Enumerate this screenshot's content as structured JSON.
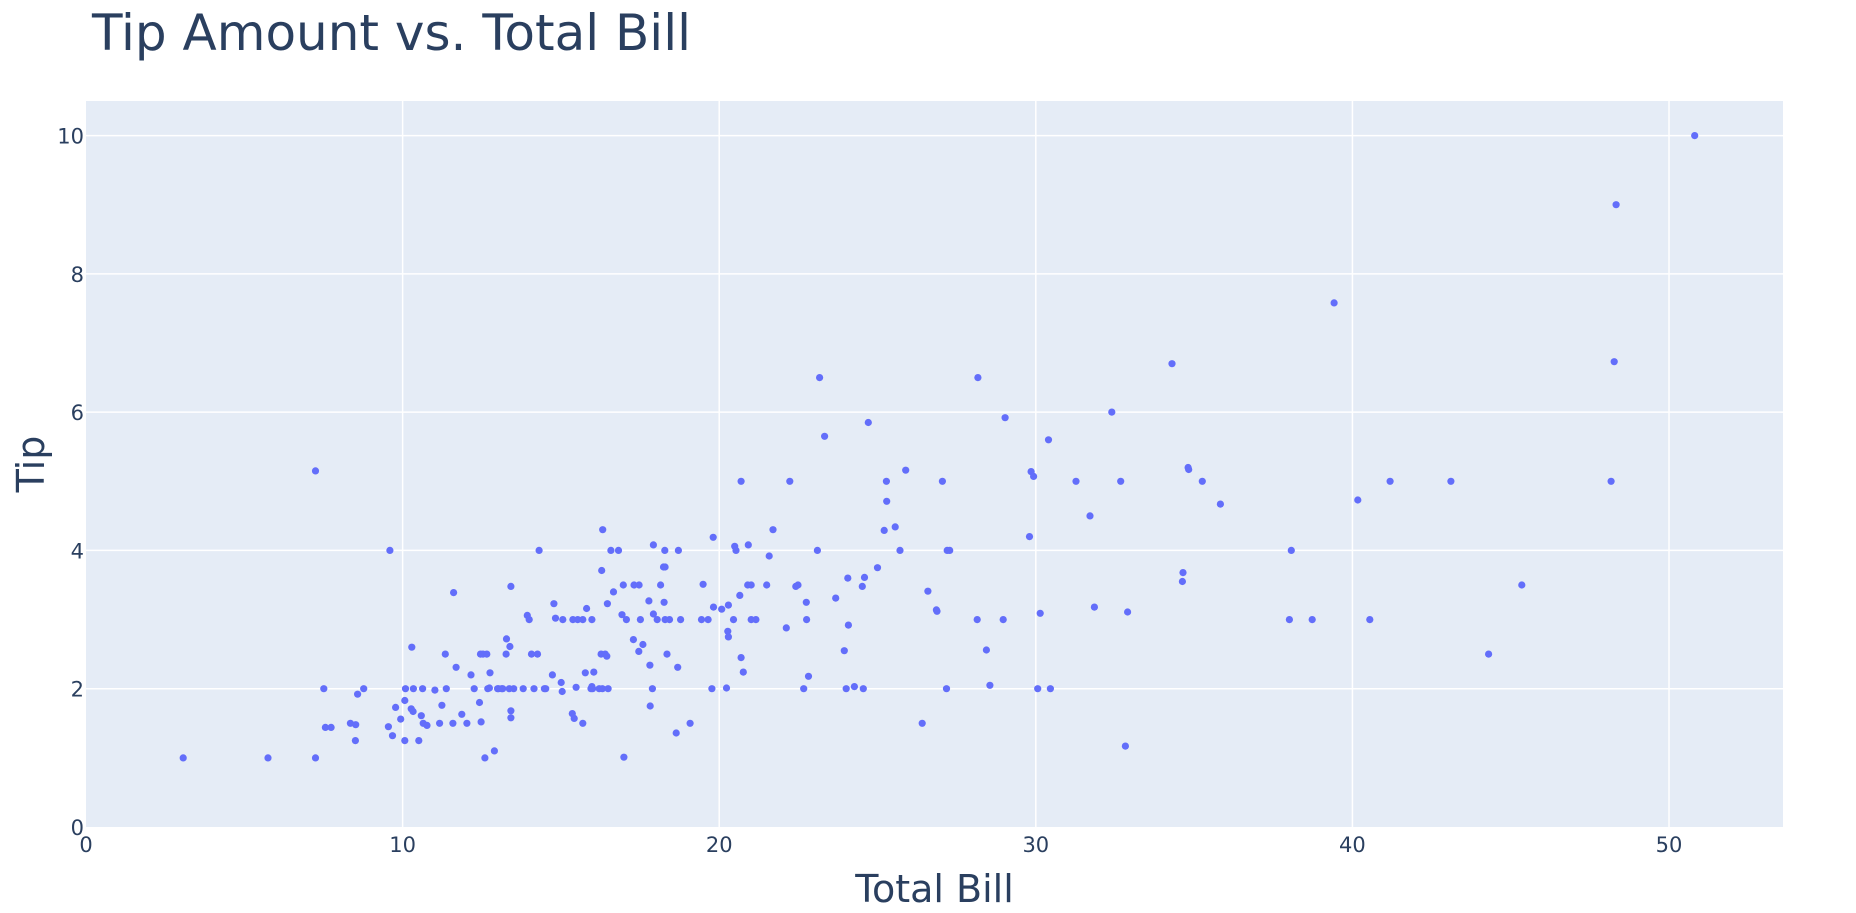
{
  "chart_data": {
    "type": "scatter",
    "title": "Tip Amount vs. Total Bill",
    "xlabel": "Total Bill",
    "ylabel": "Tip",
    "xlim": [
      0,
      53.6
    ],
    "ylim": [
      0,
      10.5
    ],
    "xticks": [
      0,
      10,
      20,
      30,
      40,
      50
    ],
    "yticks": [
      0,
      2,
      4,
      6,
      8,
      10
    ],
    "grid": true,
    "marker_color": "#636efa",
    "plot_bg": "#e5ecf6",
    "series": [
      {
        "points": [
          [
            3.07,
            1.0
          ],
          [
            5.75,
            1.0
          ],
          [
            7.25,
            1.0
          ],
          [
            7.25,
            5.15
          ],
          [
            7.51,
            2.0
          ],
          [
            7.56,
            1.44
          ],
          [
            7.74,
            1.44
          ],
          [
            8.35,
            1.5
          ],
          [
            8.51,
            1.25
          ],
          [
            8.52,
            1.48
          ],
          [
            8.58,
            1.92
          ],
          [
            8.77,
            2.0
          ],
          [
            9.55,
            1.45
          ],
          [
            9.6,
            4.0
          ],
          [
            9.68,
            1.32
          ],
          [
            9.78,
            1.73
          ],
          [
            9.94,
            1.56
          ],
          [
            10.07,
            1.25
          ],
          [
            10.07,
            1.83
          ],
          [
            10.09,
            2.0
          ],
          [
            10.27,
            1.71
          ],
          [
            10.29,
            2.6
          ],
          [
            10.33,
            1.67
          ],
          [
            10.34,
            2.0
          ],
          [
            10.51,
            1.25
          ],
          [
            10.59,
            1.61
          ],
          [
            10.63,
            2.0
          ],
          [
            10.65,
            1.5
          ],
          [
            10.77,
            1.47
          ],
          [
            11.02,
            1.98
          ],
          [
            11.17,
            1.5
          ],
          [
            11.24,
            1.76
          ],
          [
            11.35,
            2.5
          ],
          [
            11.38,
            2.0
          ],
          [
            11.59,
            1.5
          ],
          [
            11.61,
            3.39
          ],
          [
            11.69,
            2.31
          ],
          [
            11.87,
            1.63
          ],
          [
            12.03,
            1.5
          ],
          [
            12.16,
            2.2
          ],
          [
            12.26,
            2.0
          ],
          [
            12.43,
            1.8
          ],
          [
            12.46,
            2.5
          ],
          [
            12.48,
            1.52
          ],
          [
            12.54,
            2.5
          ],
          [
            12.6,
            1.0
          ],
          [
            12.66,
            2.5
          ],
          [
            12.69,
            2.0
          ],
          [
            12.74,
            2.01
          ],
          [
            12.76,
            2.23
          ],
          [
            12.9,
            1.1
          ],
          [
            13.0,
            2.0
          ],
          [
            13.03,
            2.0
          ],
          [
            13.13,
            2.0
          ],
          [
            13.16,
            2.0
          ],
          [
            13.27,
            2.5
          ],
          [
            13.28,
            2.72
          ],
          [
            13.37,
            2.0
          ],
          [
            13.39,
            2.61
          ],
          [
            13.42,
            3.48
          ],
          [
            13.42,
            1.68
          ],
          [
            13.42,
            1.58
          ],
          [
            13.51,
            2.0
          ],
          [
            13.81,
            2.0
          ],
          [
            13.94,
            3.06
          ],
          [
            14.0,
            3.0
          ],
          [
            14.07,
            2.5
          ],
          [
            14.15,
            2.0
          ],
          [
            14.26,
            2.5
          ],
          [
            14.31,
            4.0
          ],
          [
            14.48,
            2.0
          ],
          [
            14.52,
            2.0
          ],
          [
            14.73,
            2.2
          ],
          [
            14.78,
            3.23
          ],
          [
            14.83,
            3.02
          ],
          [
            15.01,
            2.09
          ],
          [
            15.04,
            1.96
          ],
          [
            15.06,
            3.0
          ],
          [
            15.36,
            1.64
          ],
          [
            15.38,
            3.0
          ],
          [
            15.42,
            1.57
          ],
          [
            15.48,
            2.02
          ],
          [
            15.53,
            3.0
          ],
          [
            15.69,
            3.0
          ],
          [
            15.69,
            1.5
          ],
          [
            15.77,
            2.23
          ],
          [
            15.81,
            3.16
          ],
          [
            15.95,
            2.0
          ],
          [
            15.98,
            2.03
          ],
          [
            15.98,
            3.0
          ],
          [
            16.0,
            2.0
          ],
          [
            16.04,
            2.24
          ],
          [
            16.21,
            2.0
          ],
          [
            16.27,
            2.5
          ],
          [
            16.29,
            3.71
          ],
          [
            16.31,
            2.0
          ],
          [
            16.32,
            4.3
          ],
          [
            16.4,
            2.5
          ],
          [
            16.45,
            2.47
          ],
          [
            16.47,
            3.23
          ],
          [
            16.49,
            2.0
          ],
          [
            16.58,
            4.0
          ],
          [
            16.66,
            3.4
          ],
          [
            16.82,
            4.0
          ],
          [
            16.93,
            3.07
          ],
          [
            16.97,
            3.5
          ],
          [
            16.99,
            1.01
          ],
          [
            17.07,
            3.0
          ],
          [
            17.29,
            2.71
          ],
          [
            17.31,
            3.5
          ],
          [
            17.46,
            2.54
          ],
          [
            17.47,
            3.5
          ],
          [
            17.51,
            3.0
          ],
          [
            17.59,
            2.64
          ],
          [
            17.78,
            3.27
          ],
          [
            17.81,
            2.34
          ],
          [
            17.82,
            1.75
          ],
          [
            17.89,
            2.0
          ],
          [
            17.92,
            4.08
          ],
          [
            17.92,
            3.08
          ],
          [
            18.04,
            3.0
          ],
          [
            18.15,
            3.5
          ],
          [
            18.24,
            3.76
          ],
          [
            18.26,
            3.25
          ],
          [
            18.28,
            4.0
          ],
          [
            18.29,
            3.0
          ],
          [
            18.29,
            3.76
          ],
          [
            18.35,
            2.5
          ],
          [
            18.43,
            3.0
          ],
          [
            18.64,
            1.36
          ],
          [
            18.69,
            2.31
          ],
          [
            18.71,
            4.0
          ],
          [
            18.78,
            3.0
          ],
          [
            19.08,
            1.5
          ],
          [
            19.44,
            3.0
          ],
          [
            19.49,
            3.51
          ],
          [
            19.65,
            3.0
          ],
          [
            19.77,
            2.0
          ],
          [
            19.81,
            4.19
          ],
          [
            19.82,
            3.18
          ],
          [
            20.08,
            3.15
          ],
          [
            20.23,
            2.01
          ],
          [
            20.27,
            2.83
          ],
          [
            20.29,
            2.75
          ],
          [
            20.29,
            3.21
          ],
          [
            20.45,
            3.0
          ],
          [
            20.49,
            4.06
          ],
          [
            20.53,
            4.0
          ],
          [
            20.65,
            3.35
          ],
          [
            20.69,
            5.0
          ],
          [
            20.69,
            2.45
          ],
          [
            20.76,
            2.24
          ],
          [
            20.9,
            3.5
          ],
          [
            20.92,
            4.08
          ],
          [
            21.01,
            3.5
          ],
          [
            21.01,
            3.0
          ],
          [
            21.16,
            3.0
          ],
          [
            21.5,
            3.5
          ],
          [
            21.58,
            3.92
          ],
          [
            21.7,
            4.3
          ],
          [
            22.12,
            2.88
          ],
          [
            22.23,
            5.0
          ],
          [
            22.42,
            3.48
          ],
          [
            22.49,
            3.5
          ],
          [
            22.67,
            2.0
          ],
          [
            22.75,
            3.25
          ],
          [
            22.76,
            3.0
          ],
          [
            22.82,
            2.18
          ],
          [
            23.1,
            4.0
          ],
          [
            23.17,
            6.5
          ],
          [
            23.33,
            5.65
          ],
          [
            23.68,
            3.31
          ],
          [
            23.95,
            2.55
          ],
          [
            24.01,
            2.0
          ],
          [
            24.06,
            3.6
          ],
          [
            24.08,
            2.92
          ],
          [
            24.27,
            2.03
          ],
          [
            24.52,
            3.48
          ],
          [
            24.55,
            2.0
          ],
          [
            24.59,
            3.61
          ],
          [
            24.71,
            5.85
          ],
          [
            25.0,
            3.75
          ],
          [
            25.21,
            4.29
          ],
          [
            25.28,
            5.0
          ],
          [
            25.29,
            4.71
          ],
          [
            25.56,
            4.34
          ],
          [
            25.71,
            4.0
          ],
          [
            25.89,
            5.16
          ],
          [
            26.41,
            1.5
          ],
          [
            26.59,
            3.41
          ],
          [
            26.86,
            3.14
          ],
          [
            26.88,
            3.12
          ],
          [
            27.05,
            5.0
          ],
          [
            27.18,
            2.0
          ],
          [
            27.2,
            4.0
          ],
          [
            27.28,
            4.0
          ],
          [
            28.15,
            3.0
          ],
          [
            28.17,
            6.5
          ],
          [
            28.44,
            2.56
          ],
          [
            28.55,
            2.05
          ],
          [
            28.97,
            3.0
          ],
          [
            29.03,
            5.92
          ],
          [
            29.8,
            4.2
          ],
          [
            29.85,
            5.14
          ],
          [
            29.93,
            5.07
          ],
          [
            30.06,
            2.0
          ],
          [
            30.14,
            3.09
          ],
          [
            30.4,
            5.6
          ],
          [
            30.46,
            2.0
          ],
          [
            31.27,
            5.0
          ],
          [
            31.71,
            4.5
          ],
          [
            31.85,
            3.18
          ],
          [
            32.4,
            6.0
          ],
          [
            32.68,
            5.0
          ],
          [
            32.83,
            1.17
          ],
          [
            32.9,
            3.11
          ],
          [
            34.3,
            6.7
          ],
          [
            34.63,
            3.55
          ],
          [
            34.65,
            3.68
          ],
          [
            34.81,
            5.2
          ],
          [
            34.83,
            5.17
          ],
          [
            35.26,
            5.0
          ],
          [
            35.83,
            4.67
          ],
          [
            38.01,
            3.0
          ],
          [
            38.07,
            4.0
          ],
          [
            38.73,
            3.0
          ],
          [
            39.42,
            7.58
          ],
          [
            40.17,
            4.73
          ],
          [
            40.55,
            3.0
          ],
          [
            41.19,
            5.0
          ],
          [
            43.11,
            5.0
          ],
          [
            44.3,
            2.5
          ],
          [
            45.35,
            3.5
          ],
          [
            48.17,
            5.0
          ],
          [
            48.27,
            6.73
          ],
          [
            48.33,
            9.0
          ],
          [
            50.81,
            10.0
          ]
        ]
      }
    ]
  }
}
